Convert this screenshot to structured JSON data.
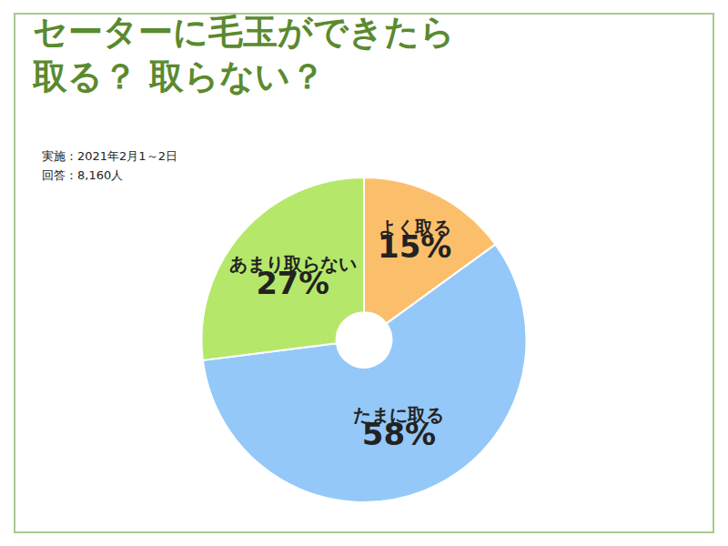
{
  "chart_data": {
    "type": "pie",
    "title": [
      "セーターに毛玉ができたら",
      "取る？ 取らない？"
    ],
    "subtitle": [
      "実施：2021年2月1～2日",
      "回答：8,160人"
    ],
    "categories": [
      "よく取る",
      "たまに取る",
      "あまり取らない"
    ],
    "values": [
      15,
      58,
      27
    ],
    "value_labels": [
      "15%",
      "58%",
      "27%"
    ],
    "colors": [
      "#fbbf6b",
      "#94c8f8",
      "#b5e86a"
    ],
    "data_labels": true
  }
}
